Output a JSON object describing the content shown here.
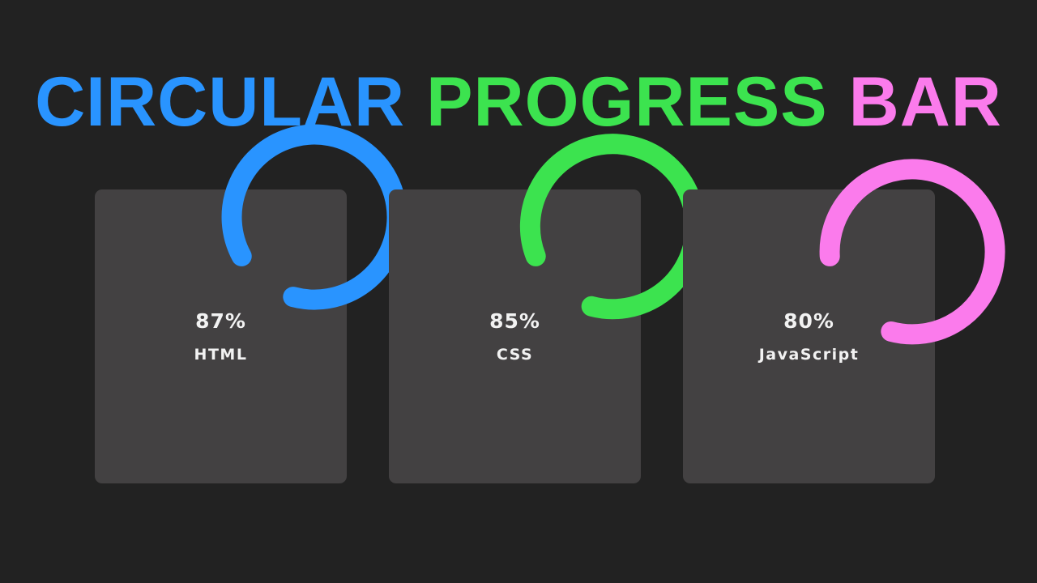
{
  "title": {
    "word1": "CIRCULAR",
    "word2": "PROGRESS",
    "word3": "BAR",
    "color1": "#2994ff",
    "color2": "#3ce34f",
    "color3": "#fb7bec"
  },
  "cards": [
    {
      "percent_label": "87%",
      "label": "HTML",
      "progress": 0.87,
      "color": "#2994ff"
    },
    {
      "percent_label": "85%",
      "label": "CSS",
      "progress": 0.85,
      "color": "#3ce34f"
    },
    {
      "percent_label": "80%",
      "label": "JavaScript",
      "progress": 0.8,
      "color": "#fb7bec"
    }
  ],
  "colors": {
    "background": "#222222",
    "card": "#434142",
    "text": "#f2f2f2"
  }
}
